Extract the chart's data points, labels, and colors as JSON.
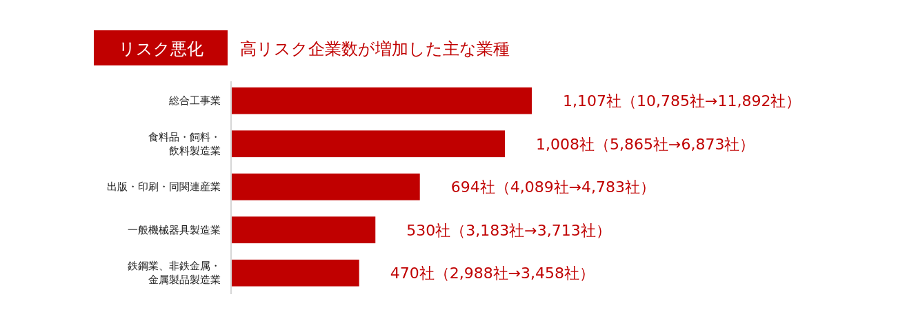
{
  "chart_data": {
    "type": "bar",
    "orientation": "horizontal",
    "title": "リスク悪化",
    "subtitle": "高リスク企業数が増加した主な業種",
    "categories": [
      "総合工事業",
      "食料品・飼料・飲料製造業",
      "出版・印刷・同関連産業",
      "一般機械器具製造業",
      "鉄鋼業、非鉄金属・金属製品製造業"
    ],
    "values": [
      1107,
      1008,
      694,
      530,
      470
    ],
    "value_labels": [
      "1,107社（10,785社→11,892社）",
      "1,008社（5,865社→6,873社）",
      "694社（4,089社→4,783社）",
      "530社（3,183社→3,713社）",
      "470社（2,988社→3,458社）"
    ],
    "color": "#c00000"
  }
}
